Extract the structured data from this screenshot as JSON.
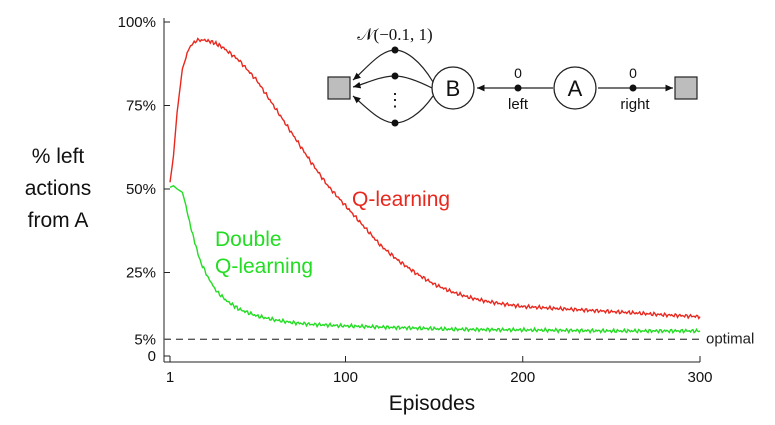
{
  "chart_data": {
    "type": "line",
    "xlabel": "Episodes",
    "ylabel_lines": [
      "% left",
      "actions",
      "from A"
    ],
    "xlim": [
      1,
      300
    ],
    "ylim": [
      0,
      100
    ],
    "x_ticks": [
      {
        "value": 1,
        "label": "1"
      },
      {
        "value": 100,
        "label": "100"
      },
      {
        "value": 200,
        "label": "200"
      },
      {
        "value": 300,
        "label": "300"
      }
    ],
    "y_ticks": [
      {
        "value": 0,
        "label": "0"
      },
      {
        "value": 5,
        "label": "5%"
      },
      {
        "value": 25,
        "label": "25%"
      },
      {
        "value": 50,
        "label": "50%"
      },
      {
        "value": 75,
        "label": "75%"
      },
      {
        "value": 100,
        "label": "100%"
      }
    ],
    "reference_line": {
      "value": 5,
      "label": "optimal",
      "style": "dashed",
      "color": "#555555"
    },
    "series": [
      {
        "name": "Q-learning",
        "color": "#e8281e",
        "x": [
          1,
          3,
          5,
          8,
          12,
          16,
          20,
          25,
          30,
          40,
          50,
          60,
          70,
          80,
          90,
          100,
          110,
          120,
          130,
          140,
          150,
          160,
          170,
          180,
          190,
          200,
          220,
          240,
          260,
          280,
          300
        ],
        "values": [
          52,
          60,
          73,
          86,
          92.5,
          94.5,
          94.6,
          94,
          92.7,
          88.5,
          82.5,
          74.5,
          66.5,
          58.5,
          51,
          45,
          39,
          33,
          28.5,
          24.7,
          21.5,
          19.2,
          17.5,
          16.3,
          15.5,
          14.8,
          14.2,
          13.6,
          13,
          12.3,
          11.8
        ]
      },
      {
        "name": "Double Q-learning",
        "label_lines": [
          "Double",
          "Q-learning"
        ],
        "color": "#22dd22",
        "x": [
          1,
          3,
          5,
          8,
          10,
          12,
          15,
          18,
          22,
          27,
          33,
          40,
          50,
          60,
          70,
          80,
          100,
          130,
          160,
          200,
          250,
          300
        ],
        "values": [
          50.5,
          51,
          50,
          49,
          45,
          40,
          34,
          28.5,
          24,
          19.5,
          16.5,
          14,
          12,
          10.8,
          10,
          9.5,
          9,
          8.5,
          8,
          7.8,
          7.5,
          7.5
        ]
      }
    ],
    "inset": {
      "states": [
        "B",
        "A"
      ],
      "distribution": "𝒩(−0.1, 1)",
      "left_action": {
        "label": "left",
        "reward": "0"
      },
      "right_action": {
        "label": "right",
        "reward": "0"
      },
      "dots": "⋮"
    }
  }
}
